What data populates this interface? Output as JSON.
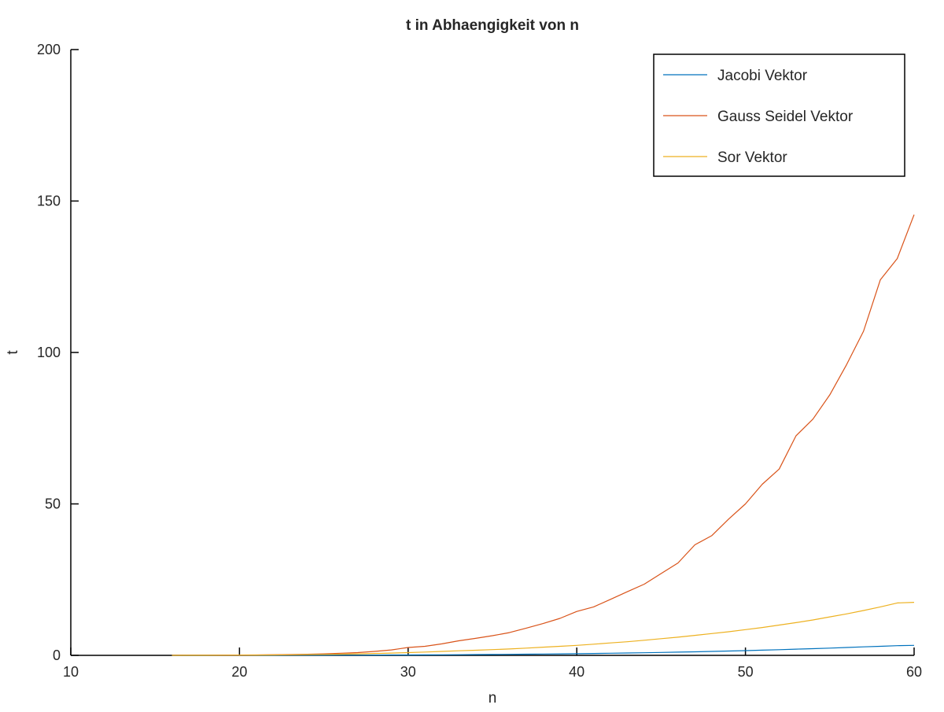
{
  "chart_data": {
    "type": "line",
    "title": "t in Abhaengigkeit von n",
    "xlabel": "n",
    "ylabel": "t",
    "xlim": [
      10,
      60
    ],
    "ylim": [
      0,
      200
    ],
    "xticks": [
      10,
      20,
      30,
      40,
      50,
      60
    ],
    "yticks": [
      0,
      50,
      100,
      150,
      200
    ],
    "xtick_labels": [
      "10",
      "20",
      "30",
      "40",
      "50",
      "60"
    ],
    "ytick_labels": [
      "0",
      "50",
      "100",
      "150",
      "200"
    ],
    "grid": false,
    "legend_position": "top-right",
    "x": [
      16,
      17,
      18,
      19,
      20,
      21,
      22,
      23,
      24,
      25,
      26,
      27,
      28,
      29,
      30,
      31,
      32,
      33,
      34,
      35,
      36,
      37,
      38,
      39,
      40,
      41,
      42,
      43,
      44,
      45,
      46,
      47,
      48,
      49,
      50,
      51,
      52,
      53,
      54,
      55,
      56,
      57,
      58,
      59,
      60
    ],
    "series": [
      {
        "name": "Jacobi Vektor",
        "color": "#0072bd",
        "values": [
          0.01,
          0.01,
          0.01,
          0.02,
          0.02,
          0.03,
          0.03,
          0.04,
          0.05,
          0.06,
          0.07,
          0.08,
          0.1,
          0.12,
          0.14,
          0.16,
          0.19,
          0.22,
          0.25,
          0.29,
          0.33,
          0.38,
          0.43,
          0.49,
          0.55,
          0.62,
          0.7,
          0.78,
          0.87,
          0.97,
          1.07,
          1.18,
          1.3,
          1.43,
          1.57,
          1.72,
          1.88,
          2.05,
          2.22,
          2.4,
          2.6,
          2.8,
          3.0,
          3.2,
          3.3
        ]
      },
      {
        "name": "Gauss Seidel Vektor",
        "color": "#d95319",
        "values": [
          0.02,
          0.03,
          0.05,
          0.07,
          0.1,
          0.14,
          0.2,
          0.27,
          0.36,
          0.5,
          0.7,
          0.9,
          1.3,
          1.8,
          2.6,
          3.0,
          3.8,
          4.8,
          5.6,
          6.5,
          7.5,
          9.0,
          10.5,
          12.2,
          14.5,
          16.0,
          18.5,
          21.0,
          23.5,
          27.0,
          30.5,
          36.5,
          39.5,
          45.0,
          50.0,
          56.5,
          61.5,
          72.5,
          78.0,
          86.0,
          96.0,
          107.0,
          124.0,
          131.0,
          145.5
        ]
      },
      {
        "name": "Sor Vektor",
        "color": "#edb120",
        "values": [
          0.01,
          0.02,
          0.03,
          0.05,
          0.07,
          0.1,
          0.14,
          0.19,
          0.25,
          0.32,
          0.4,
          0.5,
          0.62,
          0.76,
          0.92,
          1.1,
          1.3,
          1.5,
          1.7,
          1.9,
          2.1,
          2.4,
          2.7,
          3.0,
          3.3,
          3.7,
          4.1,
          4.5,
          5.0,
          5.5,
          6.0,
          6.6,
          7.2,
          7.8,
          8.5,
          9.2,
          10.0,
          10.8,
          11.7,
          12.7,
          13.7,
          14.8,
          16.0,
          17.3,
          17.5
        ]
      }
    ]
  }
}
